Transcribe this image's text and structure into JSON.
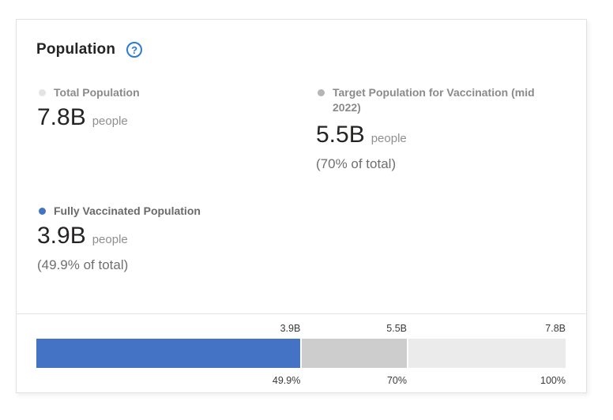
{
  "header": {
    "title": "Population",
    "help_icon": "question-circle-icon"
  },
  "stats": {
    "total": {
      "label": "Total Population",
      "value": "7.8B",
      "unit": "people"
    },
    "target": {
      "label": "Target Population for Vaccination (mid 2022)",
      "value": "5.5B",
      "unit": "people",
      "pct": "(70% of total)"
    },
    "vaccinated": {
      "label": "Fully Vaccinated Population",
      "value": "3.9B",
      "unit": "people",
      "pct": "(49.9% of total)"
    }
  },
  "colors": {
    "accent_blue": "#4472c4",
    "help_blue": "#2b7cd3",
    "segment_gray": "#cdcdcd",
    "segment_light_gray": "#ebebeb"
  },
  "chart_data": {
    "type": "bar",
    "orientation": "horizontal-stacked-progress",
    "title": "",
    "legend_position": "none",
    "xlim_pct": [
      0,
      100
    ],
    "segments": [
      {
        "name": "Fully Vaccinated Population",
        "value_label": "3.9B",
        "pct_label": "49.9%",
        "pct": 49.9,
        "color": "#4472c4"
      },
      {
        "name": "Target Population for Vaccination",
        "value_label": "5.5B",
        "pct_label": "70%",
        "pct": 70,
        "color": "#cdcdcd"
      },
      {
        "name": "Total Population",
        "value_label": "7.8B",
        "pct_label": "100%",
        "pct": 100,
        "color": "#ebebeb"
      }
    ]
  }
}
